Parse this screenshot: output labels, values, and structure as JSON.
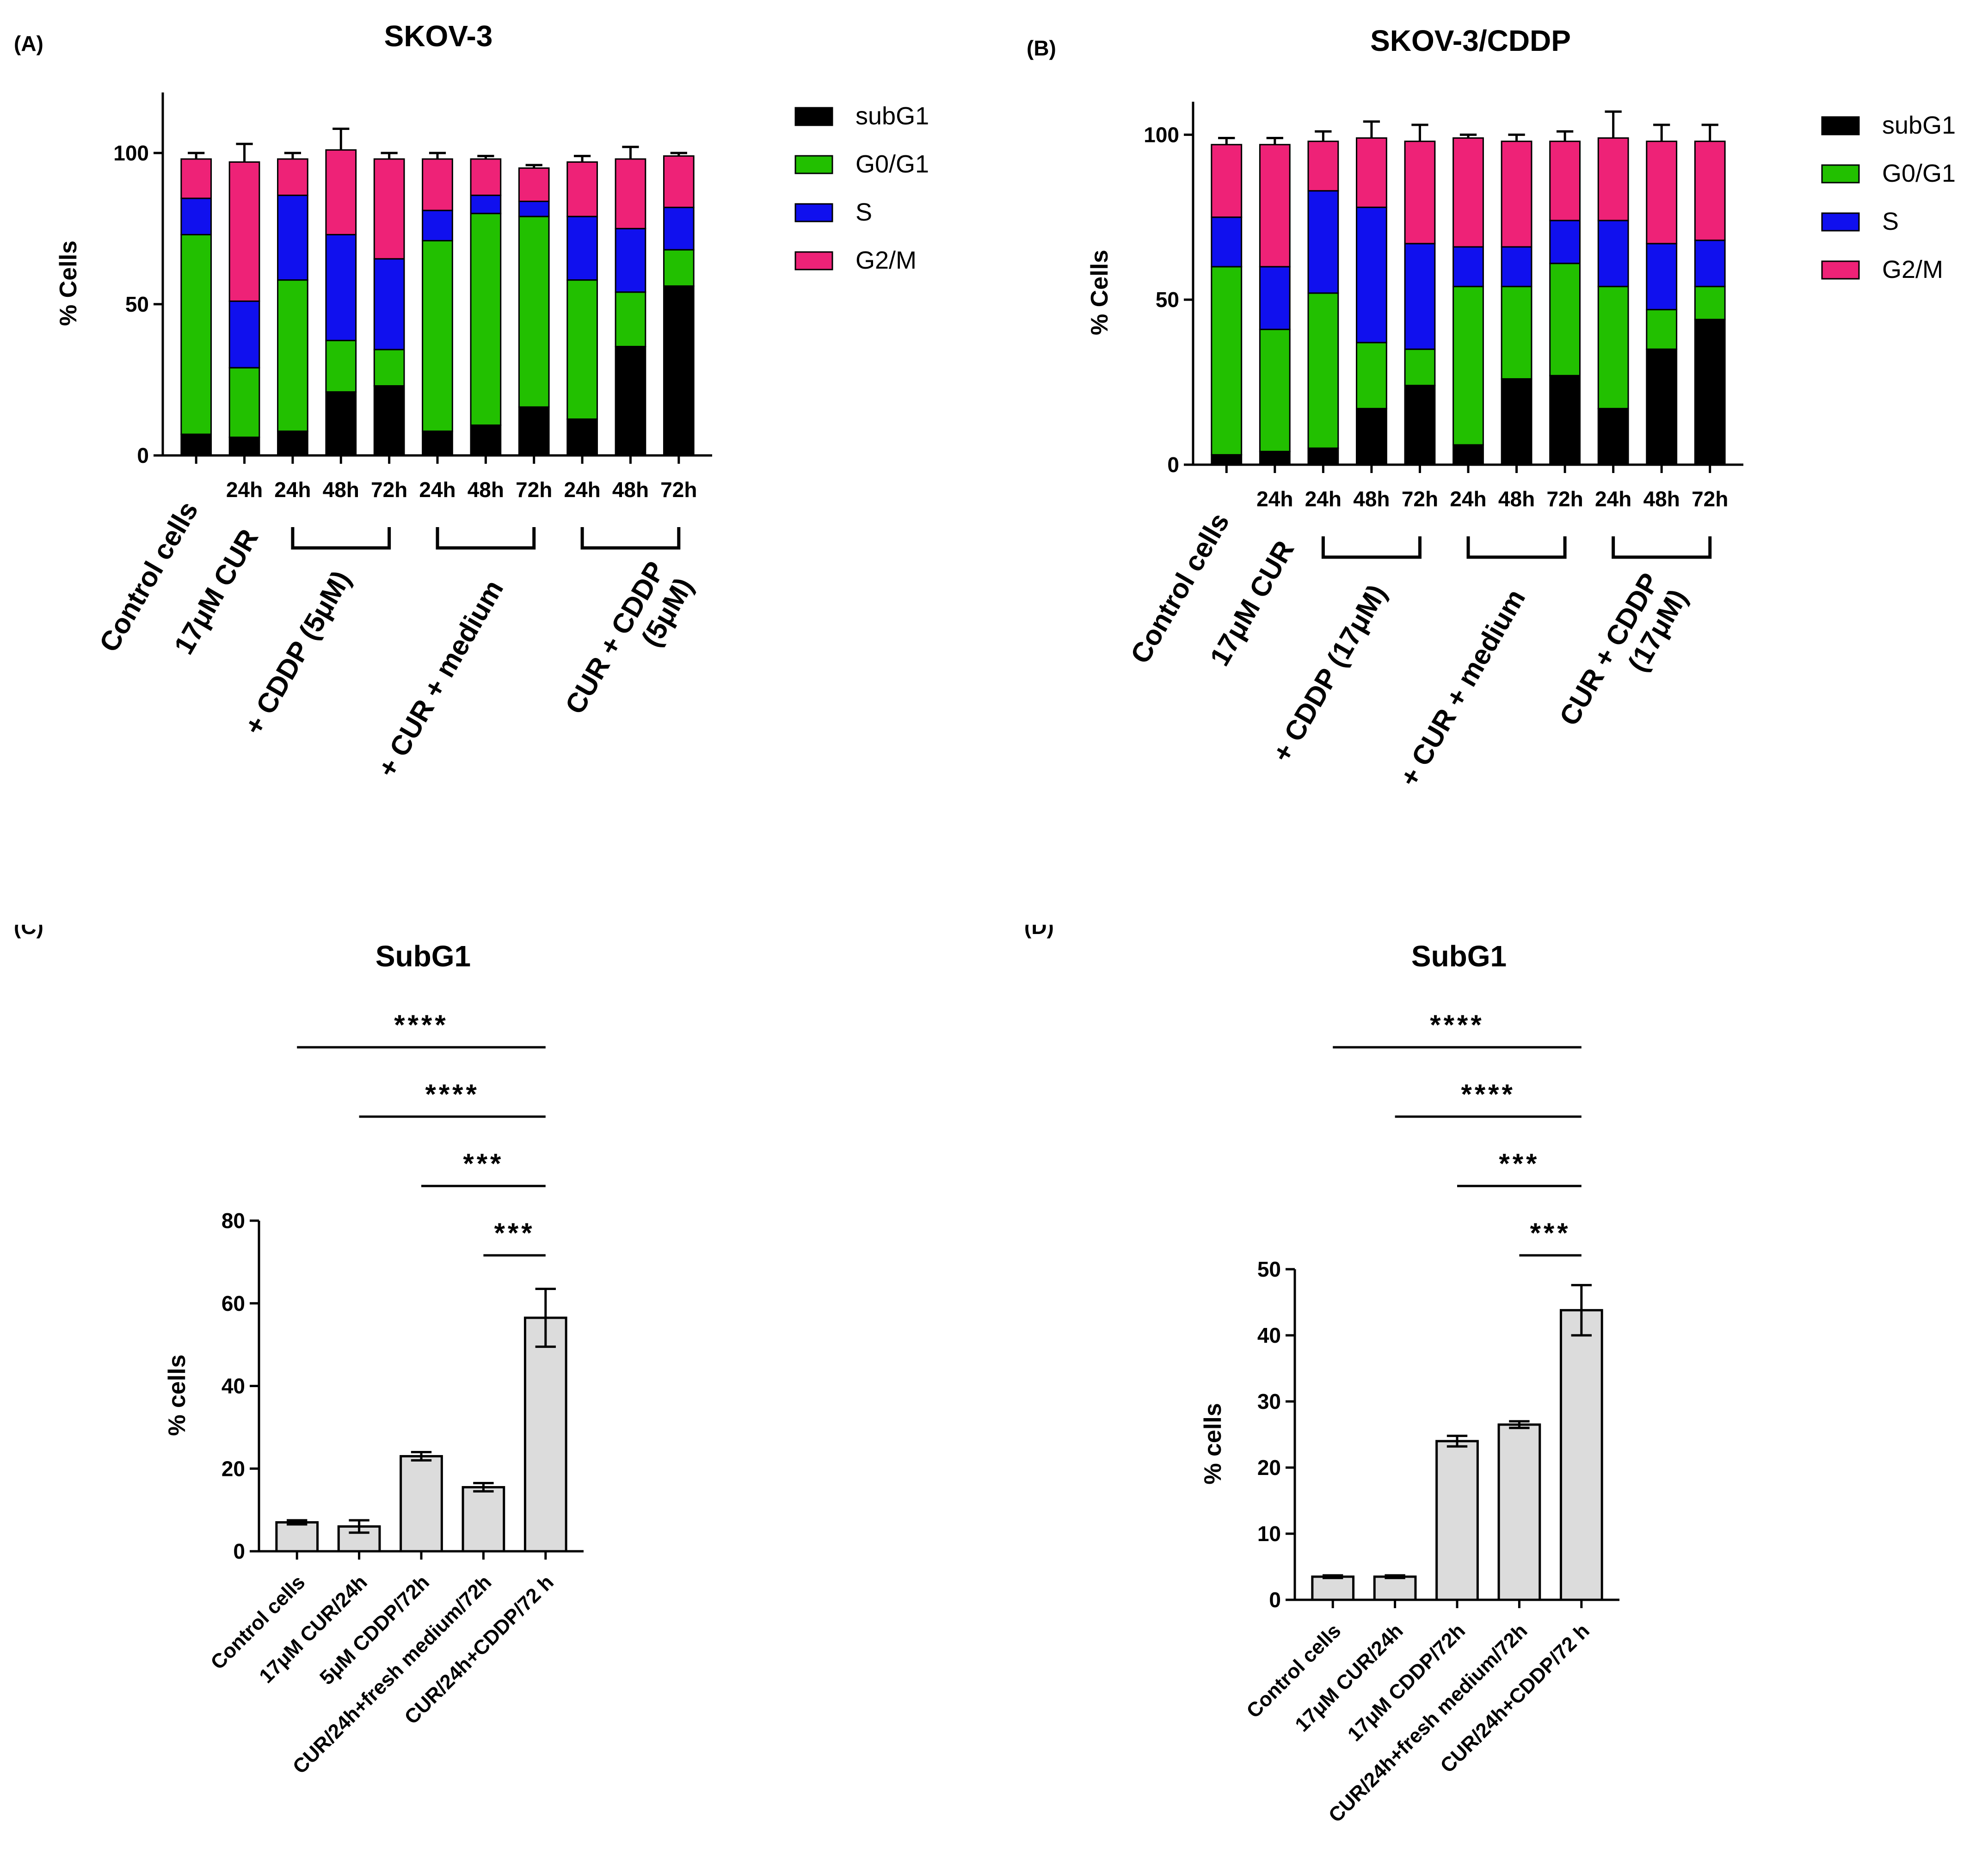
{
  "colors": {
    "subG1": "#000000",
    "G0/G1": "#22c000",
    "S": "#1010ee",
    "G2/M": "#ee2277",
    "gray_bar": "#dcdcdc"
  },
  "chart_data": [
    {
      "id": "A",
      "panel_label": "(A)",
      "type": "bar",
      "stacked": true,
      "title": "SKOV-3",
      "ylabel": "% Cells",
      "ylim": [
        0,
        120
      ],
      "yticks": [
        0,
        50,
        100
      ],
      "tick_labels": [
        "",
        "24h",
        "24h",
        "48h",
        "72h",
        "24h",
        "48h",
        "72h",
        "24h",
        "48h",
        "72h"
      ],
      "group_labels": [
        "Control cells",
        "17μM CUR",
        "+ CDDP (5μM)",
        "+ CUR + medium",
        "CUR + CDDP\n(5μM)"
      ],
      "legend": [
        "subG1",
        "G0/G1",
        "S",
        "G2/M"
      ],
      "series": [
        {
          "name": "subG1",
          "values": [
            7,
            6,
            8,
            21,
            23,
            8,
            10,
            16,
            12,
            36,
            56
          ],
          "errors": [
            1,
            1,
            6,
            1,
            1,
            2,
            1,
            1,
            2,
            1,
            7
          ]
        },
        {
          "name": "G0/G1",
          "values": [
            66,
            23,
            50,
            17,
            12,
            63,
            70,
            63,
            46,
            18,
            12
          ],
          "errors": [
            1,
            1,
            7,
            2,
            3,
            1,
            1,
            1,
            2,
            1,
            4
          ]
        },
        {
          "name": "S",
          "values": [
            12,
            22,
            28,
            35,
            30,
            10,
            6,
            5,
            21,
            21,
            14
          ],
          "errors": [
            1,
            5,
            2,
            1,
            2,
            2,
            1,
            1,
            3,
            1,
            4
          ]
        },
        {
          "name": "G2/M",
          "values": [
            13,
            46,
            12,
            28,
            33,
            17,
            12,
            11,
            18,
            23,
            17
          ],
          "errors": [
            2,
            6,
            2,
            7,
            2,
            2,
            1,
            1,
            2,
            4,
            1
          ]
        }
      ]
    },
    {
      "id": "B",
      "panel_label": "(B)",
      "type": "bar",
      "stacked": true,
      "title": "SKOV-3/CDDP",
      "ylabel": "% Cells",
      "ylim": [
        0,
        110
      ],
      "yticks": [
        0,
        50,
        100
      ],
      "tick_labels": [
        "",
        "24h",
        "24h",
        "48h",
        "72h",
        "24h",
        "48h",
        "72h",
        "24h",
        "48h",
        "72h"
      ],
      "group_labels": [
        "Control cells",
        "17μM CUR",
        "+ CDDP (17μM)",
        "+ CUR + medium",
        "CUR + CDDP\n(17μM)"
      ],
      "legend": [
        "subG1",
        "G0/G1",
        "S",
        "G2/M"
      ],
      "series": [
        {
          "name": "subG1",
          "values": [
            3,
            4,
            5,
            17,
            24,
            6,
            26,
            27,
            17,
            35,
            44
          ],
          "errors": [
            1,
            3,
            1,
            4,
            1,
            1,
            1,
            1,
            1,
            1,
            3
          ]
        },
        {
          "name": "G0/G1",
          "values": [
            57,
            37,
            47,
            20,
            11,
            48,
            28,
            34,
            37,
            12,
            10
          ],
          "errors": [
            1,
            2,
            2,
            10,
            2,
            1,
            1,
            10,
            12,
            1,
            2
          ]
        },
        {
          "name": "S",
          "values": [
            15,
            19,
            31,
            41,
            32,
            12,
            12,
            13,
            20,
            20,
            14
          ],
          "errors": [
            3,
            1,
            3,
            8,
            7,
            1,
            3,
            6,
            4,
            6,
            1
          ]
        },
        {
          "name": "G2/M",
          "values": [
            22,
            37,
            15,
            21,
            31,
            33,
            32,
            24,
            25,
            31,
            30
          ],
          "errors": [
            2,
            2,
            3,
            5,
            5,
            1,
            2,
            3,
            8,
            5,
            5
          ]
        }
      ]
    },
    {
      "id": "C",
      "panel_label": "(C)",
      "type": "bar",
      "title": "SubG1",
      "ylabel": "% cells",
      "ylim": [
        0,
        80
      ],
      "yticks": [
        0,
        20,
        40,
        60,
        80
      ],
      "categories": [
        "Control cells",
        "17μM CUR/24h",
        "5μM CDDP/72h",
        "CUR/24h+fresh medium/72h",
        "CUR/24h+CDDP/72 h"
      ],
      "values": [
        7,
        6,
        23,
        15.5,
        56.5
      ],
      "errors": [
        0.5,
        1.5,
        1,
        1,
        7
      ],
      "significance": [
        {
          "from": 0,
          "to": 4,
          "label": "****"
        },
        {
          "from": 1,
          "to": 4,
          "label": "****"
        },
        {
          "from": 2,
          "to": 4,
          "label": "***"
        },
        {
          "from": 3,
          "to": 4,
          "label": "***"
        }
      ]
    },
    {
      "id": "D",
      "panel_label": "(D)",
      "type": "bar",
      "title": "SubG1",
      "ylabel": "% cells",
      "ylim": [
        0,
        50
      ],
      "yticks": [
        0,
        10,
        20,
        30,
        40,
        50
      ],
      "categories": [
        "Control cells",
        "17μM CUR/24h",
        "17μM CDDP/72h",
        "CUR/24h+fresh medium/72h",
        "CUR/24h+CDDP/72 h"
      ],
      "values": [
        3.5,
        3.5,
        24,
        26.5,
        43.8
      ],
      "errors": [
        0.2,
        0.2,
        0.8,
        0.5,
        3.8
      ],
      "significance": [
        {
          "from": 0,
          "to": 4,
          "label": "****"
        },
        {
          "from": 1,
          "to": 4,
          "label": "****"
        },
        {
          "from": 2,
          "to": 4,
          "label": "***"
        },
        {
          "from": 3,
          "to": 4,
          "label": "***"
        }
      ]
    }
  ]
}
